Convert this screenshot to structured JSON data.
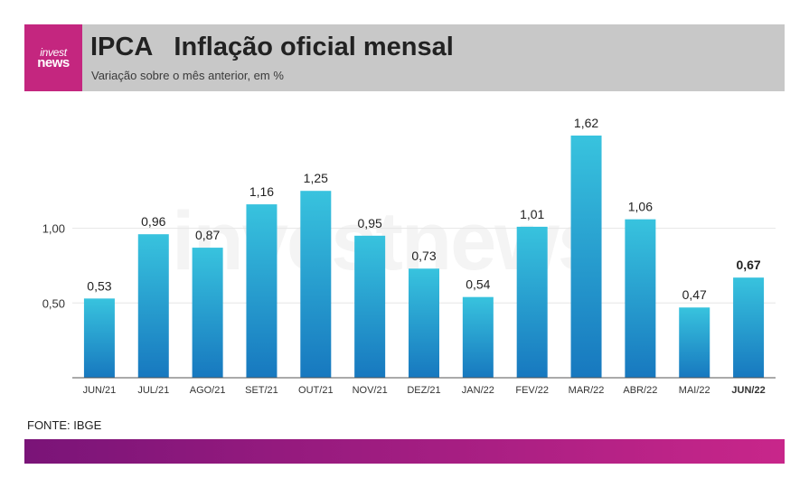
{
  "header": {
    "logo_top": "invest",
    "logo_bottom": "news",
    "title": "IPCA   Inflação oficial mensal",
    "subtitle": "Variação sobre o mês anterior, em %"
  },
  "watermark": "investnews",
  "source": "FONTE: IBGE",
  "colors": {
    "header_bg": "#c8c8c8",
    "logo_bg": "#c4267f",
    "bar_top": "#38c3de",
    "bar_bottom": "#1778bf",
    "bottom_bar_start": "#7a1478",
    "bottom_bar_end": "#c8268a"
  },
  "chart_data": {
    "type": "bar",
    "categories": [
      "JUN/21",
      "JUL/21",
      "AGO/21",
      "SET/21",
      "OUT/21",
      "NOV/21",
      "DEZ/21",
      "JAN/22",
      "FEV/22",
      "MAR/22",
      "ABR/22",
      "MAI/22",
      "JUN/22"
    ],
    "values": [
      0.53,
      0.96,
      0.87,
      1.16,
      1.25,
      0.95,
      0.73,
      0.54,
      1.01,
      1.62,
      1.06,
      0.47,
      0.67
    ],
    "value_labels": [
      "0,53",
      "0,96",
      "0,87",
      "1,16",
      "1,25",
      "0,95",
      "0,73",
      "0,54",
      "1,01",
      "1,62",
      "1,06",
      "0,47",
      "0,67"
    ],
    "highlight_index": 12,
    "yticks": [
      0.5,
      1.0
    ],
    "ytick_labels": [
      "0,50",
      "1,00"
    ],
    "ylim": [
      0,
      1.62
    ],
    "grid": true,
    "xlabel": "",
    "ylabel": ""
  }
}
